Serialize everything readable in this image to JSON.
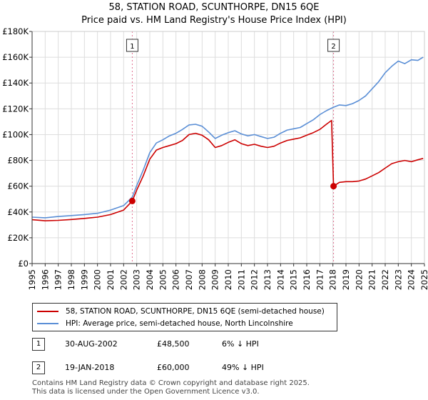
{
  "chart_data": {
    "type": "line",
    "title": "58, STATION ROAD, SCUNTHORPE, DN15 6QE",
    "subtitle": "Price paid vs. HM Land Registry's House Price Index (HPI)",
    "xlim": [
      1995,
      2025
    ],
    "ylim": [
      0,
      180000
    ],
    "x_ticks": [
      "1995",
      "1996",
      "1997",
      "1998",
      "1999",
      "2000",
      "2001",
      "2002",
      "2003",
      "2004",
      "2005",
      "2006",
      "2007",
      "2008",
      "2009",
      "2010",
      "2011",
      "2012",
      "2013",
      "2014",
      "2015",
      "2016",
      "2017",
      "2018",
      "2019",
      "2020",
      "2021",
      "2022",
      "2023",
      "2024",
      "2025"
    ],
    "y_ticks": [
      {
        "value": 0,
        "label": "£0"
      },
      {
        "value": 20000,
        "label": "£20K"
      },
      {
        "value": 40000,
        "label": "£40K"
      },
      {
        "value": 60000,
        "label": "£60K"
      },
      {
        "value": 80000,
        "label": "£80K"
      },
      {
        "value": 100000,
        "label": "£100K"
      },
      {
        "value": 120000,
        "label": "£120K"
      },
      {
        "value": 140000,
        "label": "£140K"
      },
      {
        "value": 160000,
        "label": "£160K"
      },
      {
        "value": 180000,
        "label": "£180K"
      }
    ],
    "series": [
      {
        "name": "58, STATION ROAD, SCUNTHORPE, DN15 6QE (semi-detached house)",
        "color": "#cc0000",
        "x": [
          1995.0,
          1996.0,
          1997.0,
          1998.0,
          1999.0,
          2000.0,
          2001.0,
          2002.0,
          2002.66,
          2003.0,
          2003.5,
          2004.0,
          2004.5,
          2005.0,
          2005.5,
          2006.0,
          2006.5,
          2007.0,
          2007.5,
          2008.0,
          2008.5,
          2009.0,
          2009.5,
          2010.0,
          2010.5,
          2011.0,
          2011.5,
          2012.0,
          2012.5,
          2013.0,
          2013.5,
          2014.0,
          2014.5,
          2015.0,
          2015.5,
          2016.0,
          2016.5,
          2017.0,
          2017.5,
          2017.9,
          2018.05,
          2018.5,
          2019.0,
          2019.5,
          2020.0,
          2020.5,
          2021.0,
          2021.5,
          2022.0,
          2022.5,
          2023.0,
          2023.5,
          2024.0,
          2024.5,
          2024.9
        ],
        "y": [
          34000,
          33200,
          33500,
          34200,
          35000,
          36000,
          38000,
          41500,
          48500,
          57000,
          68000,
          81000,
          88000,
          90000,
          91500,
          93000,
          95500,
          100000,
          101000,
          99500,
          96000,
          90000,
          91500,
          94000,
          96000,
          93000,
          91500,
          92500,
          91000,
          90000,
          91000,
          93500,
          95500,
          96500,
          97500,
          99500,
          101500,
          104000,
          108000,
          111000,
          60000,
          63000,
          63500,
          63500,
          64000,
          65500,
          68000,
          70500,
          74000,
          77500,
          79000,
          80000,
          79000,
          80500,
          81500
        ]
      },
      {
        "name": "HPI: Average price, semi-detached house, North Lincolnshire",
        "color": "#5b8fd6",
        "x": [
          1995.0,
          1996.0,
          1997.0,
          1998.0,
          1999.0,
          2000.0,
          2001.0,
          2002.0,
          2002.66,
          2003.0,
          2003.5,
          2004.0,
          2004.5,
          2005.0,
          2005.5,
          2006.0,
          2006.5,
          2007.0,
          2007.5,
          2008.0,
          2008.5,
          2009.0,
          2009.5,
          2010.0,
          2010.5,
          2011.0,
          2011.5,
          2012.0,
          2012.5,
          2013.0,
          2013.5,
          2014.0,
          2014.5,
          2015.0,
          2015.5,
          2016.0,
          2016.5,
          2017.0,
          2017.5,
          2018.0,
          2018.5,
          2019.0,
          2019.5,
          2020.0,
          2020.5,
          2021.0,
          2021.5,
          2022.0,
          2022.5,
          2023.0,
          2023.5,
          2024.0,
          2024.5,
          2024.9
        ],
        "y": [
          36000,
          35500,
          36500,
          37200,
          38000,
          39000,
          41500,
          45000,
          51500,
          60500,
          72500,
          86000,
          93500,
          96000,
          99000,
          101000,
          104000,
          107500,
          108000,
          106500,
          102000,
          97000,
          99500,
          101500,
          103000,
          100500,
          99000,
          100000,
          98500,
          97000,
          98000,
          101000,
          103500,
          104500,
          105500,
          108500,
          111500,
          115500,
          118500,
          121000,
          123000,
          122500,
          124000,
          126500,
          130000,
          135500,
          141000,
          148000,
          153000,
          157000,
          155000,
          158000,
          157500,
          160000
        ]
      }
    ],
    "annotations": [
      {
        "label": "1",
        "x": 2002.66
      },
      {
        "label": "2",
        "x": 2018.05
      }
    ],
    "sale_points": [
      {
        "x": 2002.66,
        "y": 48500
      },
      {
        "x": 2018.05,
        "y": 60000
      }
    ]
  },
  "legend": {
    "items": [
      {
        "label": "58, STATION ROAD, SCUNTHORPE, DN15 6QE (semi-detached house)",
        "color": "#cc0000"
      },
      {
        "label": "HPI: Average price, semi-detached house, North Lincolnshire",
        "color": "#5b8fd6"
      }
    ]
  },
  "sales": [
    {
      "badge": "1",
      "date": "30-AUG-2002",
      "price": "£48,500",
      "hpi": "6% ↓ HPI"
    },
    {
      "badge": "2",
      "date": "19-JAN-2018",
      "price": "£60,000",
      "hpi": "49% ↓ HPI"
    }
  ],
  "footer": {
    "line1": "Contains HM Land Registry data © Crown copyright and database right 2025.",
    "line2": "This data is licensed under the Open Government Licence v3.0."
  }
}
